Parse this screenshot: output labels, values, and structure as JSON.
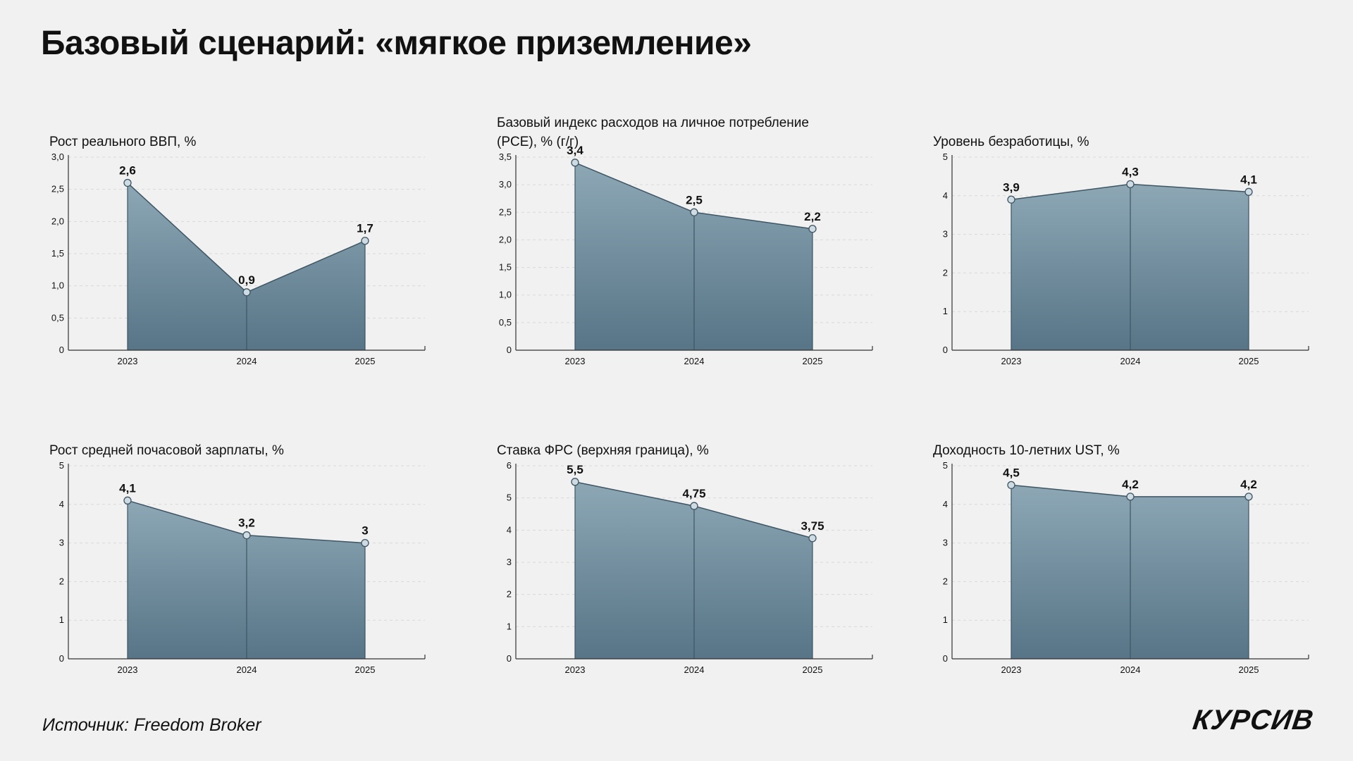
{
  "page": {
    "title": "Базовый сценарий: «мягкое приземление»",
    "source": "Источник: Freedom Broker",
    "logo": "КУРСИВ"
  },
  "colors": {
    "area_top": "#8da7b5",
    "area_bottom": "#577587",
    "line": "#3e5563",
    "grid": "#d9d9d9",
    "axis": "#333333",
    "point_fill": "#cfdbe2"
  },
  "chart_data": [
    {
      "type": "area",
      "title": "Рост реального ВВП, %",
      "categories": [
        "2023",
        "2024",
        "2025"
      ],
      "values": [
        2.6,
        0.9,
        1.7
      ],
      "value_labels": [
        "2,6",
        "0,9",
        "1,7"
      ],
      "ylim": [
        0,
        3.0
      ],
      "yticks": [
        0,
        0.5,
        1.0,
        1.5,
        2.0,
        2.5,
        3.0
      ],
      "ytick_labels": [
        "0",
        "0,5",
        "1,0",
        "1,5",
        "2,0",
        "2,5",
        "3,0"
      ],
      "grid": true
    },
    {
      "type": "area",
      "title": "Базовый индекс расходов на личное потребление (PCE), % (г/г)",
      "categories": [
        "2023",
        "2024",
        "2025"
      ],
      "values": [
        3.4,
        2.5,
        2.2
      ],
      "value_labels": [
        "3,4",
        "2,5",
        "2,2"
      ],
      "ylim": [
        0,
        3.5
      ],
      "yticks": [
        0,
        0.5,
        1.0,
        1.5,
        2.0,
        2.5,
        3.0,
        3.5
      ],
      "ytick_labels": [
        "0",
        "0,5",
        "1,0",
        "1,5",
        "2,0",
        "2,5",
        "3,0",
        "3,5"
      ],
      "grid": true
    },
    {
      "type": "area",
      "title": "Уровень безработицы, %",
      "categories": [
        "2023",
        "2024",
        "2025"
      ],
      "values": [
        3.9,
        4.3,
        4.1
      ],
      "value_labels": [
        "3,9",
        "4,3",
        "4,1"
      ],
      "ylim": [
        0,
        5
      ],
      "yticks": [
        0,
        1,
        2,
        3,
        4,
        5
      ],
      "ytick_labels": [
        "0",
        "1",
        "2",
        "3",
        "4",
        "5"
      ],
      "grid": true
    },
    {
      "type": "area",
      "title": "Рост средней почасовой зарплаты, %",
      "categories": [
        "2023",
        "2024",
        "2025"
      ],
      "values": [
        4.1,
        3.2,
        3
      ],
      "value_labels": [
        "4,1",
        "3,2",
        "3"
      ],
      "ylim": [
        0,
        5
      ],
      "yticks": [
        0,
        1,
        2,
        3,
        4,
        5
      ],
      "ytick_labels": [
        "0",
        "1",
        "2",
        "3",
        "4",
        "5"
      ],
      "grid": true
    },
    {
      "type": "area",
      "title": "Ставка ФРС (верхняя граница), %",
      "categories": [
        "2023",
        "2024",
        "2025"
      ],
      "values": [
        5.5,
        4.75,
        3.75
      ],
      "value_labels": [
        "5,5",
        "4,75",
        "3,75"
      ],
      "ylim": [
        0,
        6
      ],
      "yticks": [
        0,
        1,
        2,
        3,
        4,
        5,
        6
      ],
      "ytick_labels": [
        "0",
        "1",
        "2",
        "3",
        "4",
        "5",
        "6"
      ],
      "grid": true
    },
    {
      "type": "area",
      "title": "Доходность 10-летних UST, %",
      "categories": [
        "2023",
        "2024",
        "2025"
      ],
      "values": [
        4.5,
        4.2,
        4.2
      ],
      "value_labels": [
        "4,5",
        "4,2",
        "4,2"
      ],
      "ylim": [
        0,
        5
      ],
      "yticks": [
        0,
        1,
        2,
        3,
        4,
        5
      ],
      "ytick_labels": [
        "0",
        "1",
        "2",
        "3",
        "4",
        "5"
      ],
      "grid": true
    }
  ]
}
